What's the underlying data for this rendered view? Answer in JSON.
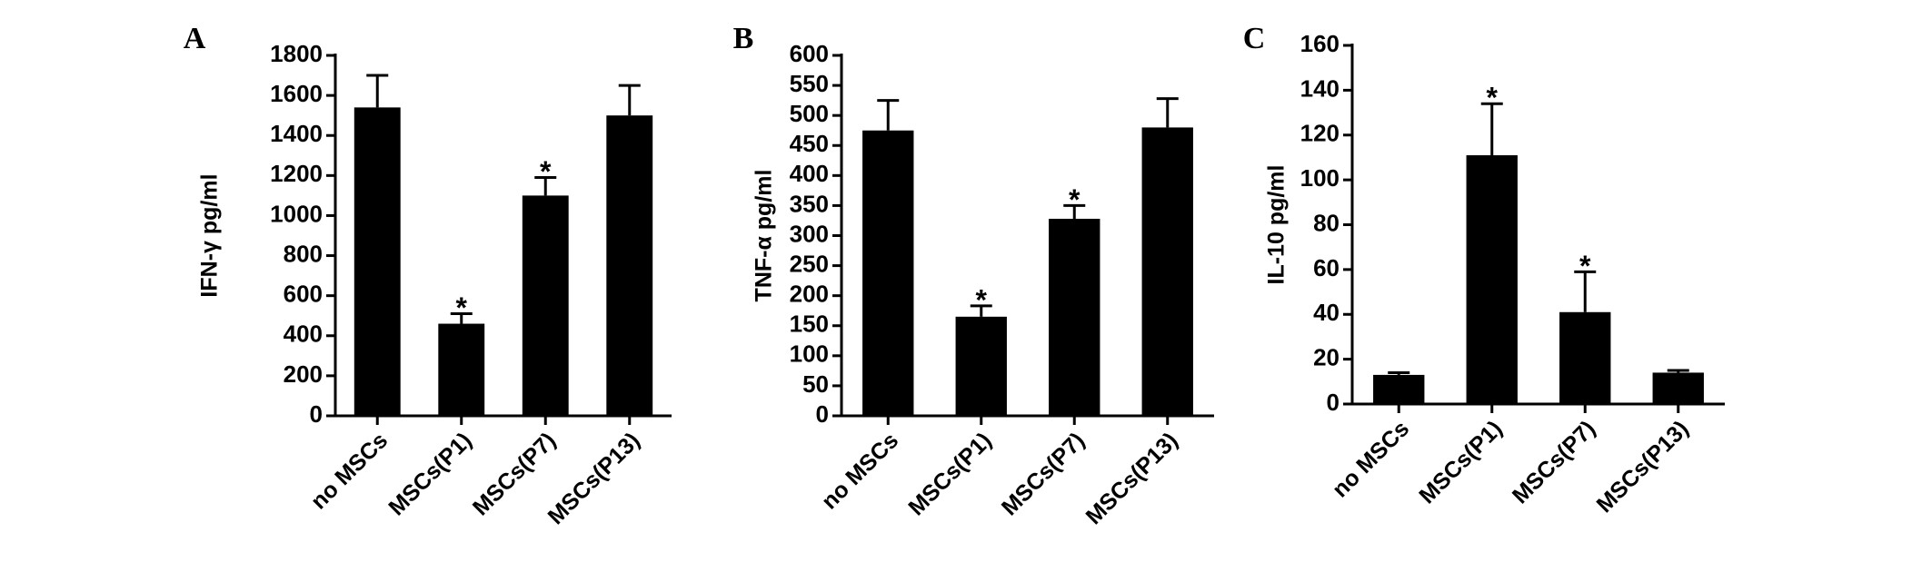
{
  "chart_data": [
    {
      "type": "bar",
      "panel_label": "A",
      "y_label": "IFN-γ  pg/ml",
      "categories": [
        "no MSCs",
        "MSCs(P1)",
        "MSCs(P7)",
        "MSCs(P13)"
      ],
      "values": [
        1540,
        460,
        1100,
        1500
      ],
      "errors": [
        160,
        50,
        90,
        150
      ],
      "markers": [
        null,
        "*",
        "*",
        null
      ],
      "color": "#000000",
      "ylim": [
        0,
        1800
      ],
      "yticks": [
        0,
        200,
        400,
        600,
        800,
        1000,
        1200,
        1400,
        1600,
        1800
      ]
    },
    {
      "type": "bar",
      "panel_label": "B",
      "y_label": "TNF-α  pg/ml",
      "categories": [
        "no MSCs",
        "MSCs(P1)",
        "MSCs(P7)",
        "MSCs(P13)"
      ],
      "values": [
        475,
        165,
        328,
        480
      ],
      "errors": [
        50,
        18,
        22,
        48
      ],
      "markers": [
        null,
        "*",
        "*",
        null
      ],
      "color": "#000000",
      "ylim": [
        0,
        600
      ],
      "yticks": [
        0,
        50,
        100,
        150,
        200,
        250,
        300,
        350,
        400,
        450,
        500,
        550,
        600
      ]
    },
    {
      "type": "bar",
      "panel_label": "C",
      "y_label": "IL-10  pg/ml",
      "categories": [
        "no MSCs",
        "MSCs(P1)",
        "MSCs(P7)",
        "MSCs(P13)"
      ],
      "values": [
        13,
        111,
        41,
        14
      ],
      "errors": [
        1,
        23,
        18,
        1
      ],
      "markers": [
        null,
        "*",
        "*",
        null
      ],
      "color": "#000000",
      "ylim": [
        0,
        160
      ],
      "yticks": [
        0,
        20,
        40,
        60,
        80,
        100,
        120,
        140,
        160
      ]
    }
  ]
}
